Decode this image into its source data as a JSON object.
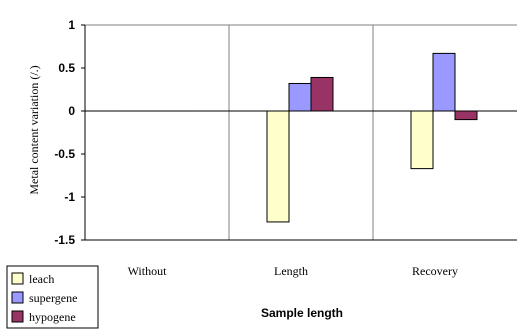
{
  "chart_data": {
    "type": "bar",
    "title": "",
    "xlabel": "Sample length",
    "ylabel": "Metal content variation (/.)",
    "categories": [
      "Without",
      "Length",
      "Recovery"
    ],
    "series": [
      {
        "name": "leach",
        "values": [
          0,
          -1.29,
          -0.67
        ],
        "color": "#ffffcc"
      },
      {
        "name": "supergene",
        "values": [
          0,
          0.32,
          0.67
        ],
        "color": "#9999ff"
      },
      {
        "name": "hypogene",
        "values": [
          0,
          0.39,
          -0.1
        ],
        "color": "#993366"
      }
    ],
    "ylim": [
      -1.5,
      1
    ],
    "yticks": [
      1,
      0.5,
      0,
      -0.5,
      -1,
      -1.5
    ],
    "ytick_labels": [
      "1",
      "0.5",
      "0",
      "-0.5",
      "-1",
      "-1.5"
    ],
    "grid": "vertical lines between categories",
    "legend_position": "bottom-left"
  }
}
